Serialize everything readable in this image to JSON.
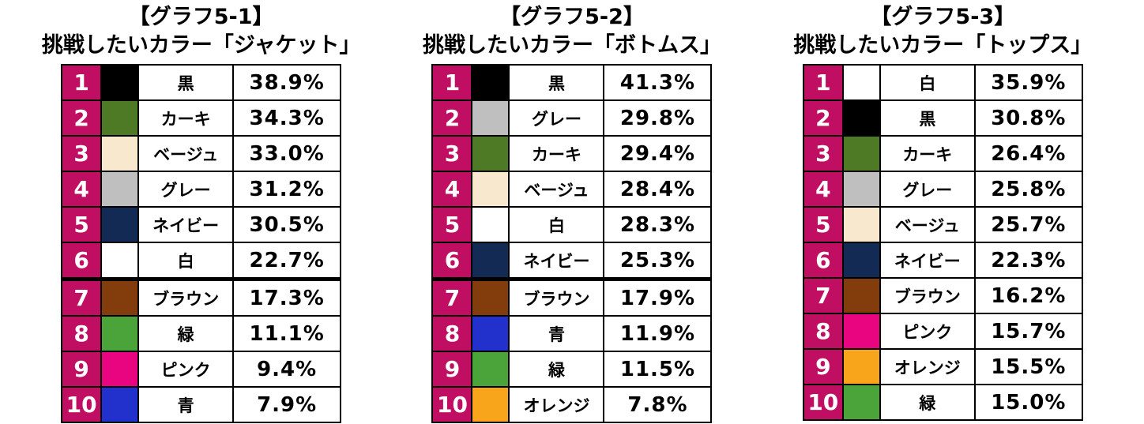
{
  "page": {
    "background": "#ffffff",
    "title_color": "#000000",
    "border_color": "#000000",
    "rank_bg": "#C00F63",
    "rank_text_color": "#ffffff"
  },
  "swatch_palette": {
    "black": "#000000",
    "khaki": "#4E7A25",
    "beige": "#F7E8CE",
    "gray": "#BFBFBF",
    "navy": "#122A54",
    "white": "#FFFFFF",
    "brown": "#833C0C",
    "green": "#4BA43A",
    "pink": "#E8057F",
    "blue": "#2231CB",
    "orange": "#F9A51B"
  },
  "chart_data": [
    {
      "type": "table",
      "title_line1": "【グラフ5-1】",
      "title_line2": "挑戦したいカラー「ジャケット」",
      "columns": [
        "rank",
        "color_swatch",
        "color_name",
        "percent"
      ],
      "thick_divider_after_rank": 6,
      "rows": [
        {
          "rank": 1,
          "color_name": "黒",
          "swatch_name": "black",
          "swatch_hex": "#000000",
          "percent": "38.9%"
        },
        {
          "rank": 2,
          "color_name": "カーキ",
          "swatch_name": "khaki",
          "swatch_hex": "#4E7A25",
          "percent": "34.3%"
        },
        {
          "rank": 3,
          "color_name": "ベージュ",
          "swatch_name": "beige",
          "swatch_hex": "#F7E8CE",
          "percent": "33.0%"
        },
        {
          "rank": 4,
          "color_name": "グレー",
          "swatch_name": "gray",
          "swatch_hex": "#BFBFBF",
          "percent": "31.2%"
        },
        {
          "rank": 5,
          "color_name": "ネイビー",
          "swatch_name": "navy",
          "swatch_hex": "#122A54",
          "percent": "30.5%"
        },
        {
          "rank": 6,
          "color_name": "白",
          "swatch_name": "white",
          "swatch_hex": "#FFFFFF",
          "percent": "22.7%"
        },
        {
          "rank": 7,
          "color_name": "ブラウン",
          "swatch_name": "brown",
          "swatch_hex": "#833C0C",
          "percent": "17.3%"
        },
        {
          "rank": 8,
          "color_name": "緑",
          "swatch_name": "green",
          "swatch_hex": "#4BA43A",
          "percent": "11.1%"
        },
        {
          "rank": 9,
          "color_name": "ピンク",
          "swatch_name": "pink",
          "swatch_hex": "#E8057F",
          "percent": "9.4%"
        },
        {
          "rank": 10,
          "color_name": "青",
          "swatch_name": "blue",
          "swatch_hex": "#2231CB",
          "percent": "7.9%"
        }
      ]
    },
    {
      "type": "table",
      "title_line1": "【グラフ5-2】",
      "title_line2": "挑戦したいカラー「ボトムス」",
      "columns": [
        "rank",
        "color_swatch",
        "color_name",
        "percent"
      ],
      "thick_divider_after_rank": 6,
      "rows": [
        {
          "rank": 1,
          "color_name": "黒",
          "swatch_name": "black",
          "swatch_hex": "#000000",
          "percent": "41.3%"
        },
        {
          "rank": 2,
          "color_name": "グレー",
          "swatch_name": "gray",
          "swatch_hex": "#BFBFBF",
          "percent": "29.8%"
        },
        {
          "rank": 3,
          "color_name": "カーキ",
          "swatch_name": "khaki",
          "swatch_hex": "#4E7A25",
          "percent": "29.4%"
        },
        {
          "rank": 4,
          "color_name": "ベージュ",
          "swatch_name": "beige",
          "swatch_hex": "#F7E8CE",
          "percent": "28.4%"
        },
        {
          "rank": 5,
          "color_name": "白",
          "swatch_name": "white",
          "swatch_hex": "#FFFFFF",
          "percent": "28.3%"
        },
        {
          "rank": 6,
          "color_name": "ネイビー",
          "swatch_name": "navy",
          "swatch_hex": "#122A54",
          "percent": "25.3%"
        },
        {
          "rank": 7,
          "color_name": "ブラウン",
          "swatch_name": "brown",
          "swatch_hex": "#833C0C",
          "percent": "17.9%"
        },
        {
          "rank": 8,
          "color_name": "青",
          "swatch_name": "blue",
          "swatch_hex": "#2231CB",
          "percent": "11.9%"
        },
        {
          "rank": 9,
          "color_name": "緑",
          "swatch_name": "green",
          "swatch_hex": "#4BA43A",
          "percent": "11.5%"
        },
        {
          "rank": 10,
          "color_name": "オレンジ",
          "swatch_name": "orange",
          "swatch_hex": "#F9A51B",
          "percent": "7.8%"
        }
      ]
    },
    {
      "type": "table",
      "title_line1": "【グラフ5-3】",
      "title_line2": "挑戦したいカラー「トップス」",
      "columns": [
        "rank",
        "color_swatch",
        "color_name",
        "percent"
      ],
      "thick_divider_after_rank": null,
      "rows": [
        {
          "rank": 1,
          "color_name": "白",
          "swatch_name": "white",
          "swatch_hex": "#FFFFFF",
          "percent": "35.9%"
        },
        {
          "rank": 2,
          "color_name": "黒",
          "swatch_name": "black",
          "swatch_hex": "#000000",
          "percent": "30.8%"
        },
        {
          "rank": 3,
          "color_name": "カーキ",
          "swatch_name": "khaki",
          "swatch_hex": "#4E7A25",
          "percent": "26.4%"
        },
        {
          "rank": 4,
          "color_name": "グレー",
          "swatch_name": "gray",
          "swatch_hex": "#BFBFBF",
          "percent": "25.8%"
        },
        {
          "rank": 5,
          "color_name": "ベージュ",
          "swatch_name": "beige",
          "swatch_hex": "#F7E8CE",
          "percent": "25.7%"
        },
        {
          "rank": 6,
          "color_name": "ネイビー",
          "swatch_name": "navy",
          "swatch_hex": "#122A54",
          "percent": "22.3%"
        },
        {
          "rank": 7,
          "color_name": "ブラウン",
          "swatch_name": "brown",
          "swatch_hex": "#833C0C",
          "percent": "16.2%"
        },
        {
          "rank": 8,
          "color_name": "ピンク",
          "swatch_name": "pink",
          "swatch_hex": "#E8057F",
          "percent": "15.7%"
        },
        {
          "rank": 9,
          "color_name": "オレンジ",
          "swatch_name": "orange",
          "swatch_hex": "#F9A51B",
          "percent": "15.5%"
        },
        {
          "rank": 10,
          "color_name": "緑",
          "swatch_name": "green",
          "swatch_hex": "#4BA43A",
          "percent": "15.0%"
        }
      ]
    }
  ]
}
